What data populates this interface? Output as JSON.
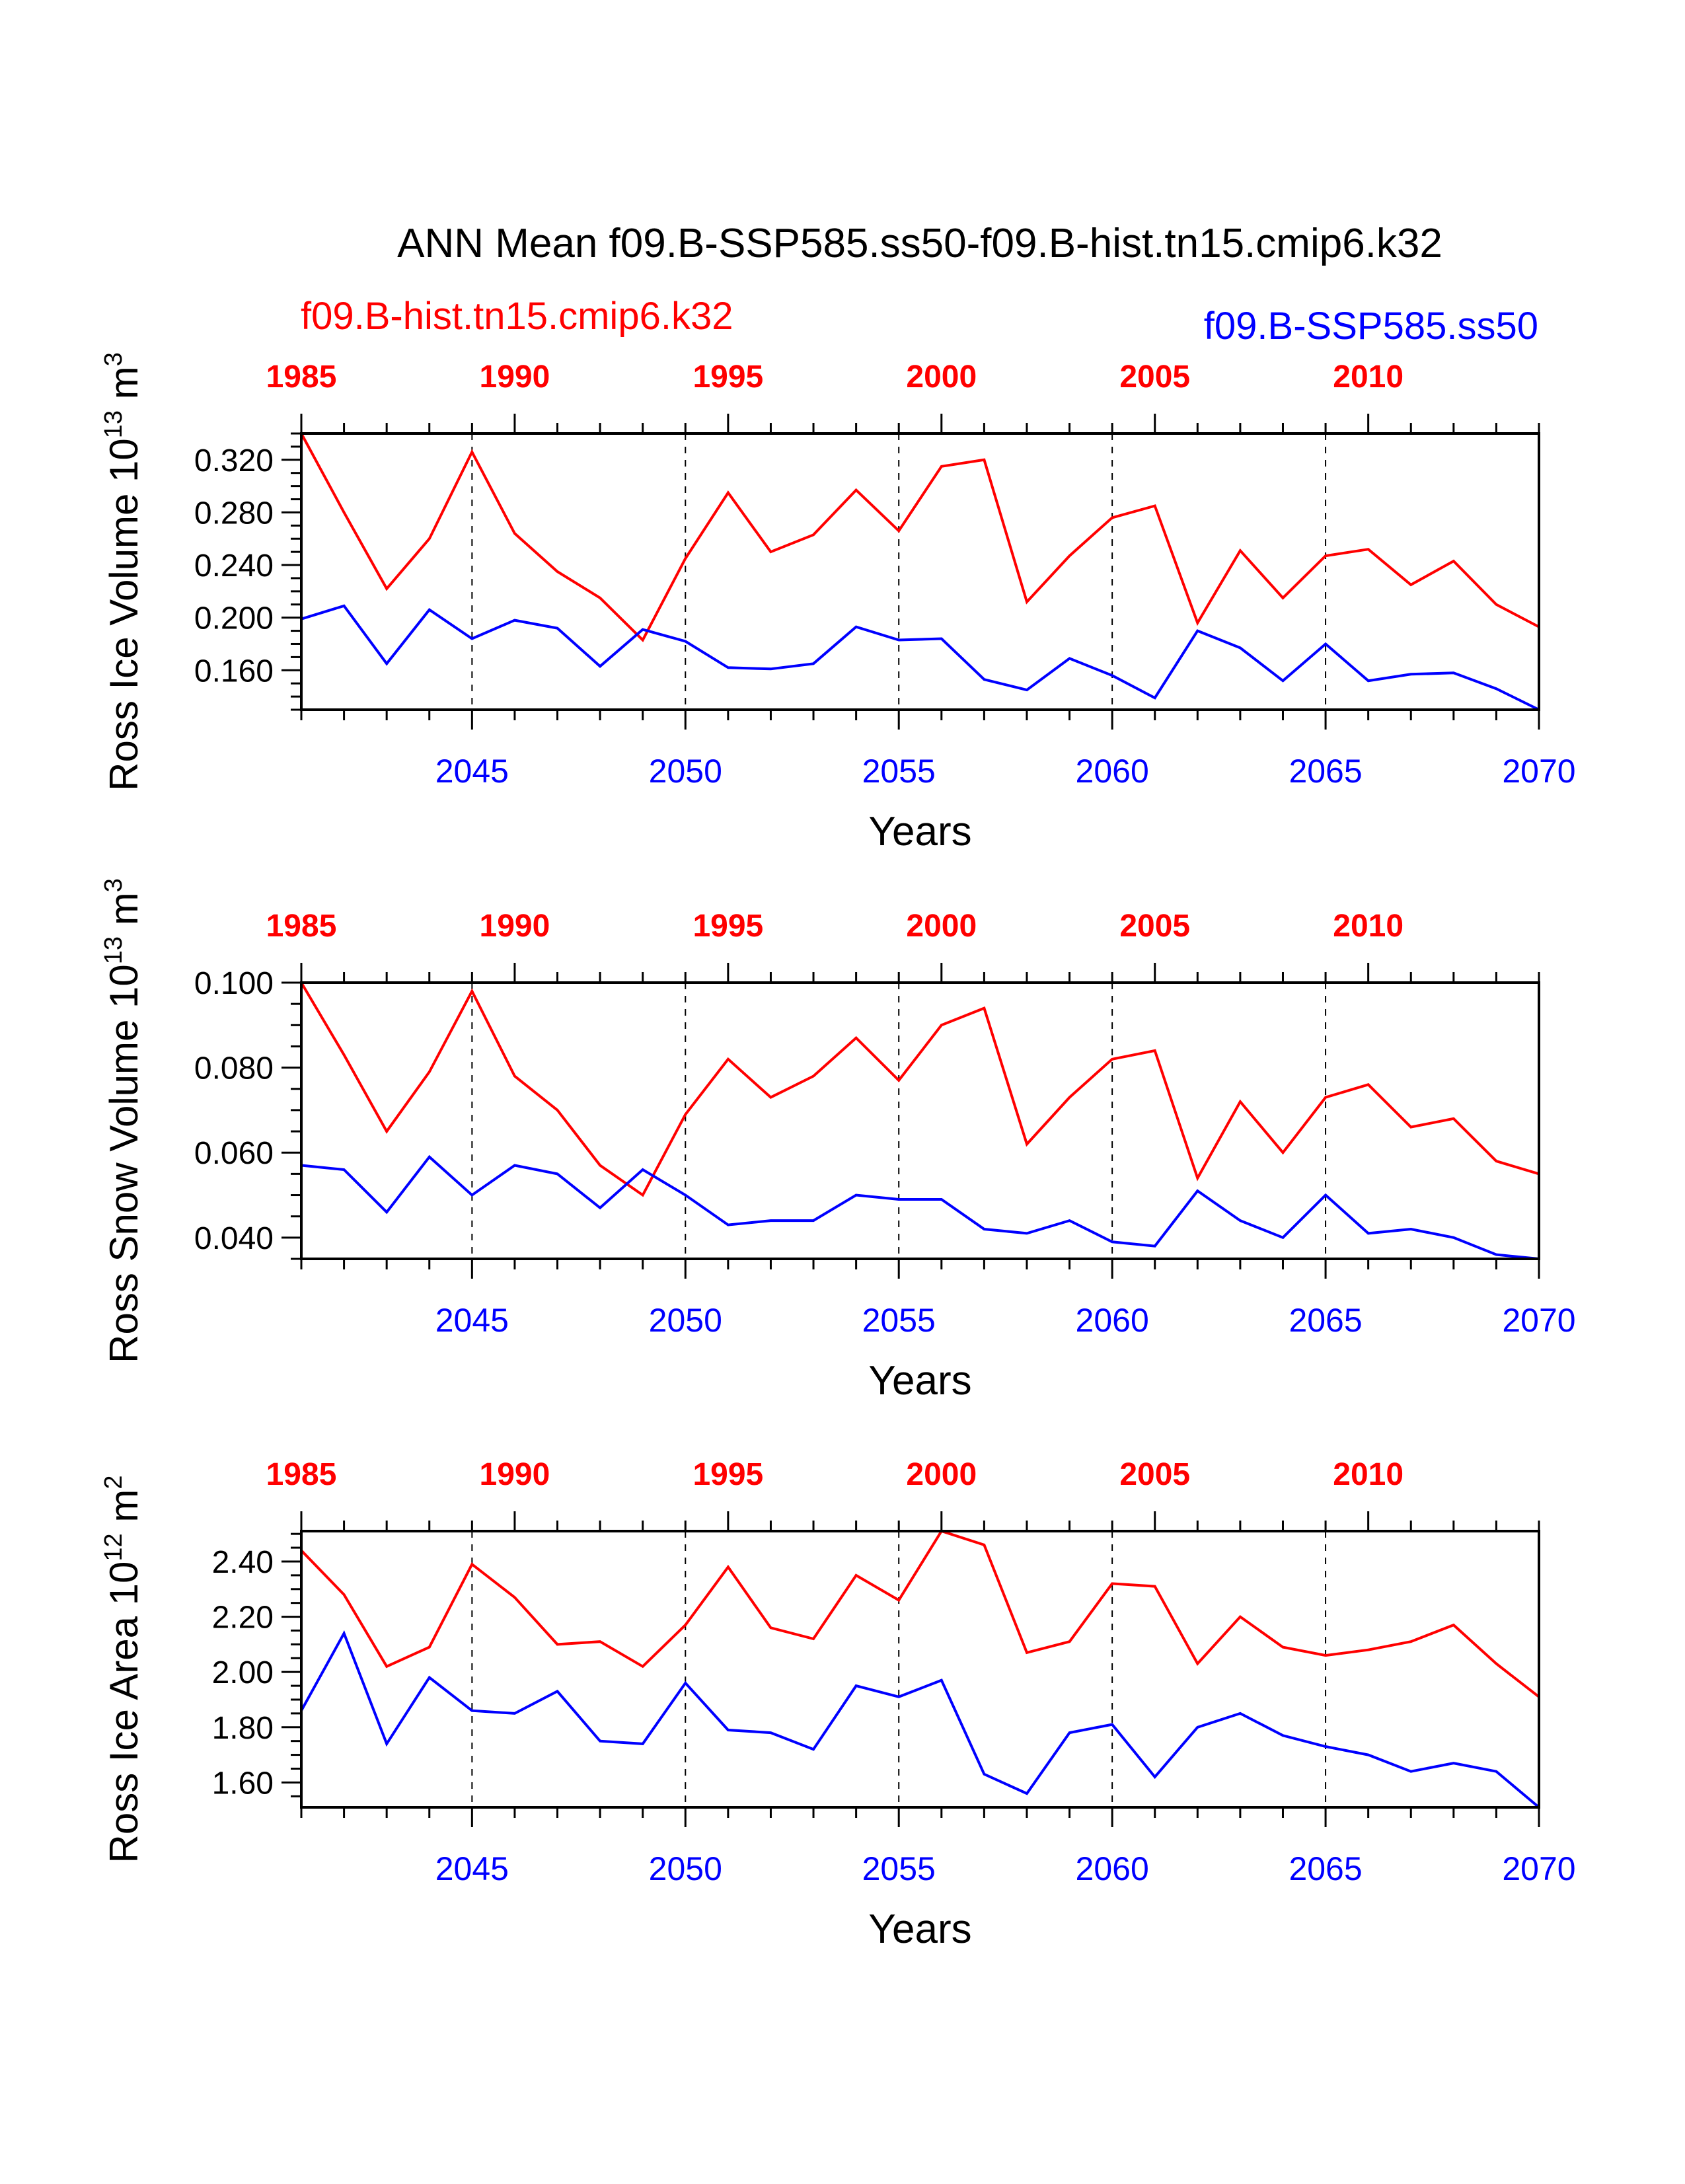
{
  "page": {
    "title": "ANN Mean f09.B-SSP585.ss50-f09.B-hist.tn15.cmip6.k32",
    "legend_left": "f09.B-hist.tn15.cmip6.k32",
    "legend_right": "f09.B-SSP585.ss50"
  },
  "colors": {
    "hist": "#ff0000",
    "ssp": "#0000ff",
    "axis": "#000000"
  },
  "chart_data": [
    {
      "type": "line",
      "ylabel": "Ross Ice Volume 10",
      "ylabel_exp": "13",
      "ylabel_unit": " m",
      "ylabel_unit_exp": "3",
      "xlabel": "Years",
      "ylim": [
        0.13,
        0.34
      ],
      "yticks": [
        0.16,
        0.2,
        0.24,
        0.28,
        0.32
      ],
      "ytick_labels": [
        "0.160",
        "0.200",
        "0.240",
        "0.280",
        "0.320"
      ],
      "x": [
        2041,
        2042,
        2043,
        2044,
        2045,
        2046,
        2047,
        2048,
        2049,
        2050,
        2051,
        2052,
        2053,
        2054,
        2055,
        2056,
        2057,
        2058,
        2059,
        2060,
        2061,
        2062,
        2063,
        2064,
        2065,
        2066,
        2067,
        2068,
        2069,
        2070
      ],
      "series": [
        {
          "name": "f09.B-hist.tn15.cmip6.k32",
          "key": "hist",
          "values": [
            0.34,
            0.28,
            0.222,
            0.26,
            0.326,
            0.264,
            0.235,
            0.215,
            0.183,
            0.245,
            0.295,
            0.25,
            0.263,
            0.297,
            0.266,
            0.315,
            0.32,
            0.212,
            0.247,
            0.276,
            0.285,
            0.196,
            0.251,
            0.215,
            0.247,
            0.252,
            0.225,
            0.243,
            0.21,
            0.193
          ]
        },
        {
          "name": "f09.B-SSP585.ss50",
          "key": "ssp",
          "values": [
            0.199,
            0.209,
            0.165,
            0.206,
            0.184,
            0.198,
            0.192,
            0.163,
            0.191,
            0.182,
            0.162,
            0.161,
            0.165,
            0.193,
            0.183,
            0.184,
            0.153,
            0.145,
            0.169,
            0.156,
            0.139,
            0.19,
            0.177,
            0.152,
            0.18,
            0.152,
            0.157,
            0.158,
            0.146,
            0.13
          ]
        }
      ]
    },
    {
      "type": "line",
      "ylabel": "Ross Snow Volume 10",
      "ylabel_exp": "13",
      "ylabel_unit": " m",
      "ylabel_unit_exp": "3",
      "xlabel": "Years",
      "ylim": [
        0.035,
        0.1
      ],
      "yticks": [
        0.04,
        0.06,
        0.08,
        0.1
      ],
      "ytick_labels": [
        "0.040",
        "0.060",
        "0.080",
        "0.100"
      ],
      "x": [
        2041,
        2042,
        2043,
        2044,
        2045,
        2046,
        2047,
        2048,
        2049,
        2050,
        2051,
        2052,
        2053,
        2054,
        2055,
        2056,
        2057,
        2058,
        2059,
        2060,
        2061,
        2062,
        2063,
        2064,
        2065,
        2066,
        2067,
        2068,
        2069,
        2070
      ],
      "series": [
        {
          "name": "f09.B-hist.tn15.cmip6.k32",
          "key": "hist",
          "values": [
            0.1,
            0.083,
            0.065,
            0.079,
            0.098,
            0.078,
            0.07,
            0.057,
            0.05,
            0.069,
            0.082,
            0.073,
            0.078,
            0.087,
            0.077,
            0.09,
            0.094,
            0.062,
            0.073,
            0.082,
            0.084,
            0.054,
            0.072,
            0.06,
            0.073,
            0.076,
            0.066,
            0.068,
            0.058,
            0.055
          ]
        },
        {
          "name": "f09.B-SSP585.ss50",
          "key": "ssp",
          "values": [
            0.057,
            0.056,
            0.046,
            0.059,
            0.05,
            0.057,
            0.055,
            0.047,
            0.056,
            0.05,
            0.043,
            0.044,
            0.044,
            0.05,
            0.049,
            0.049,
            0.042,
            0.041,
            0.044,
            0.039,
            0.038,
            0.051,
            0.044,
            0.04,
            0.05,
            0.041,
            0.042,
            0.04,
            0.036,
            0.035
          ]
        }
      ]
    },
    {
      "type": "line",
      "ylabel": "Ross Ice Area 10",
      "ylabel_exp": "12",
      "ylabel_unit": " m",
      "ylabel_unit_exp": "2",
      "xlabel": "Years",
      "ylim": [
        1.51,
        2.51
      ],
      "yticks": [
        1.6,
        1.8,
        2.0,
        2.2,
        2.4
      ],
      "ytick_labels": [
        "1.60",
        "1.80",
        "2.00",
        "2.20",
        "2.40"
      ],
      "x": [
        2041,
        2042,
        2043,
        2044,
        2045,
        2046,
        2047,
        2048,
        2049,
        2050,
        2051,
        2052,
        2053,
        2054,
        2055,
        2056,
        2057,
        2058,
        2059,
        2060,
        2061,
        2062,
        2063,
        2064,
        2065,
        2066,
        2067,
        2068,
        2069,
        2070
      ],
      "series": [
        {
          "name": "f09.B-hist.tn15.cmip6.k32",
          "key": "hist",
          "values": [
            2.44,
            2.28,
            2.02,
            2.09,
            2.39,
            2.27,
            2.1,
            2.11,
            2.02,
            2.17,
            2.38,
            2.16,
            2.12,
            2.35,
            2.26,
            2.51,
            2.46,
            2.07,
            2.11,
            2.32,
            2.31,
            2.03,
            2.2,
            2.09,
            2.06,
            2.08,
            2.11,
            2.17,
            2.03,
            1.91
          ]
        },
        {
          "name": "f09.B-SSP585.ss50",
          "key": "ssp",
          "values": [
            1.86,
            2.14,
            1.74,
            1.98,
            1.86,
            1.85,
            1.93,
            1.75,
            1.74,
            1.96,
            1.79,
            1.78,
            1.72,
            1.95,
            1.91,
            1.97,
            1.63,
            1.56,
            1.78,
            1.81,
            1.62,
            1.8,
            1.85,
            1.77,
            1.73,
            1.7,
            1.64,
            1.67,
            1.64,
            1.51
          ]
        }
      ]
    }
  ],
  "axes": {
    "bottom_ticks": [
      2045,
      2050,
      2055,
      2060,
      2065,
      2070
    ],
    "bottom_tick_labels": [
      "2045",
      "2050",
      "2055",
      "2060",
      "2065",
      "2070"
    ],
    "top_ticks": [
      1985,
      1990,
      1995,
      2000,
      2005,
      2010
    ],
    "top_tick_labels": [
      "1985",
      "1990",
      "1995",
      "2000",
      "2005",
      "2010"
    ],
    "year_offset": 56,
    "grid": "dashed vertical lines at major bottom ticks"
  }
}
